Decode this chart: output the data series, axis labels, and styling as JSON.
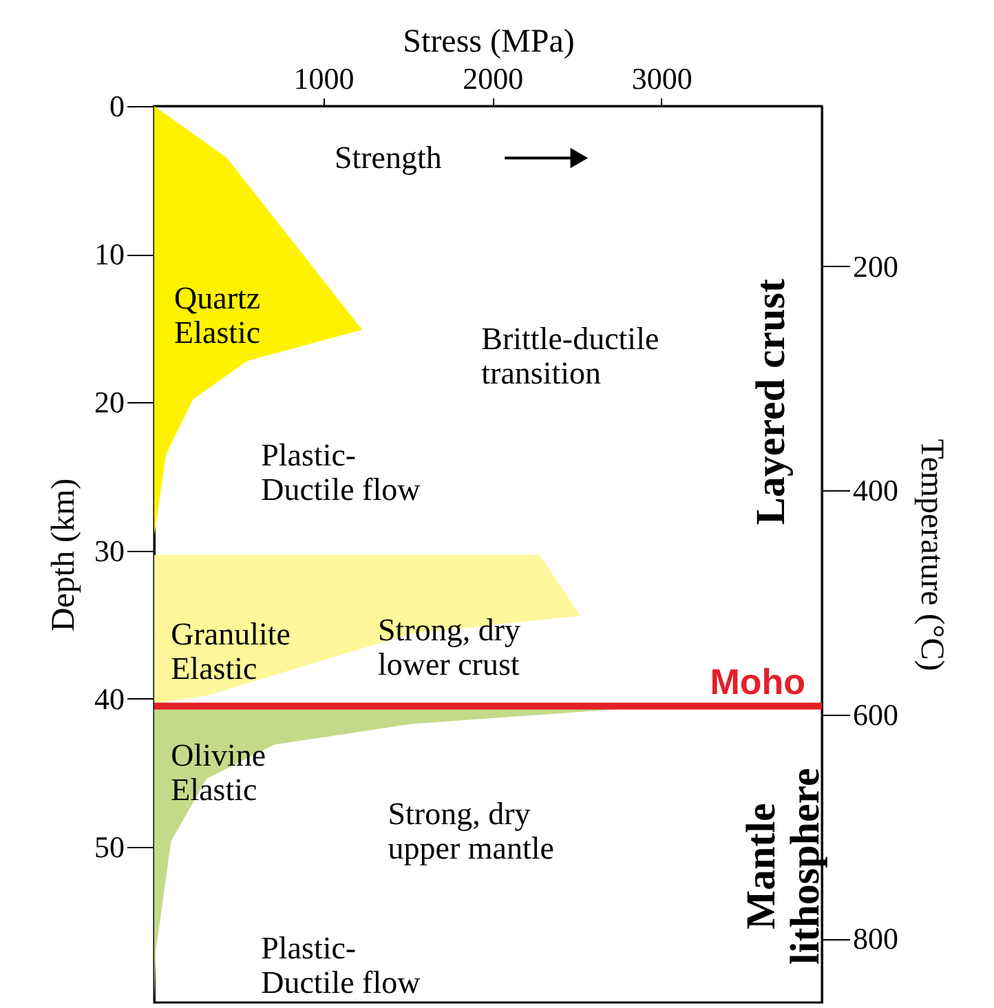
{
  "chart_data": {
    "type": "area",
    "orientation": "horizontal",
    "xlabel": "Stress (MPa)",
    "ylabel": "Depth (km)",
    "y2label": "Temperature (°C)",
    "xlim": [
      0,
      3950
    ],
    "xticks": [
      1000,
      2000,
      3000
    ],
    "ylim": [
      60.5,
      0
    ],
    "yticks": [
      0,
      10,
      20,
      30,
      40,
      50
    ],
    "y2lim": [
      857,
      57
    ],
    "y2ticks": [
      200,
      400,
      600,
      800
    ],
    "grid": false,
    "series": [
      {
        "color": "#fff200",
        "x": [
          0,
          3.5,
          15.1,
          17.2,
          19.8,
          23.5,
          29
        ],
        "values": [
          0,
          430,
          1230,
          550,
          230,
          70,
          0
        ]
      },
      {
        "color": "#fff799",
        "x": [
          30.3,
          34.4,
          35.6,
          38.4,
          39.8,
          40.3
        ],
        "values": [
          2280,
          2520,
          1520,
          710,
          310,
          0
        ]
      },
      {
        "color": "#c5d98a",
        "x": [
          40.5,
          41.7,
          43.1,
          45.4,
          49.6,
          57,
          60.5
        ],
        "values": [
          3000,
          1520,
          710,
          310,
          100,
          10,
          0
        ]
      }
    ],
    "ref_lines": [
      {
        "axis": "y",
        "value": 40.5,
        "label": "Moho",
        "color": "#e3202a"
      }
    ],
    "annotations": [
      "Strength",
      "Quartz\nElastic",
      "Brittle-ductile\ntransition",
      "Plastic-\nDuctile flow",
      "Granulite\nElastic",
      "Strong, dry\nlower crust",
      "Olivine\nElastic",
      "Strong, dry\nupper mantle",
      "Plastic-\nDuctile flow",
      "Layered crust",
      "Mantle\nlithosphere"
    ]
  }
}
